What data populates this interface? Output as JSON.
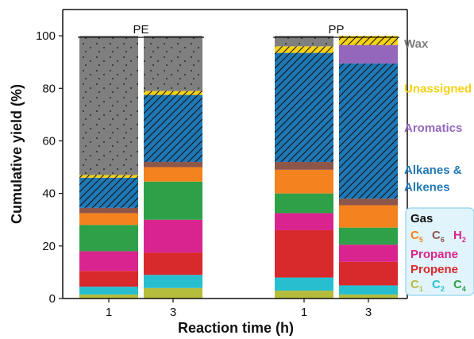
{
  "chart_data": {
    "type": "bar",
    "stacked": true,
    "xlabel": "Reaction time (h)",
    "ylabel": "Cumulative yield (%)",
    "ylim": [
      0,
      110
    ],
    "yticks": [
      0,
      20,
      40,
      60,
      80,
      100
    ],
    "groups": [
      {
        "label": "PE",
        "bars": [
          {
            "time_label": "1",
            "segments": [
              {
                "component": "C1",
                "value": 1.5
              },
              {
                "component": "C2",
                "value": 3.0
              },
              {
                "component": "Propene",
                "value": 6.0
              },
              {
                "component": "Propane",
                "value": 7.5
              },
              {
                "component": "C4",
                "value": 10.0
              },
              {
                "component": "C5",
                "value": 4.5
              },
              {
                "component": "C6",
                "value": 2.0
              },
              {
                "component": "Alkanes & Alkenes",
                "value": 11.5
              },
              {
                "component": "Unassigned",
                "value": 1.0
              },
              {
                "component": "Wax",
                "value": 53.0
              }
            ]
          },
          {
            "time_label": "3",
            "segments": [
              {
                "component": "C1",
                "value": 4.0
              },
              {
                "component": "C2",
                "value": 5.0
              },
              {
                "component": "Propene",
                "value": 8.5
              },
              {
                "component": "Propane",
                "value": 12.5
              },
              {
                "component": "C4",
                "value": 14.5
              },
              {
                "component": "C5",
                "value": 5.5
              },
              {
                "component": "C6",
                "value": 2.0
              },
              {
                "component": "Alkanes & Alkenes",
                "value": 25.5
              },
              {
                "component": "Unassigned",
                "value": 1.5
              },
              {
                "component": "Wax",
                "value": 21.0
              }
            ]
          }
        ]
      },
      {
        "label": "PP",
        "bars": [
          {
            "time_label": "1",
            "segments": [
              {
                "component": "C1",
                "value": 3.0
              },
              {
                "component": "C2",
                "value": 5.0
              },
              {
                "component": "Propene",
                "value": 18.0
              },
              {
                "component": "Propane",
                "value": 6.5
              },
              {
                "component": "C4",
                "value": 7.5
              },
              {
                "component": "C5",
                "value": 9.0
              },
              {
                "component": "C6",
                "value": 3.0
              },
              {
                "component": "Alkanes & Alkenes",
                "value": 41.5
              },
              {
                "component": "Unassigned",
                "value": 2.5
              },
              {
                "component": "Wax",
                "value": 4.0
              }
            ]
          },
          {
            "time_label": "3",
            "segments": [
              {
                "component": "C1",
                "value": 1.5
              },
              {
                "component": "C2",
                "value": 3.5
              },
              {
                "component": "Propene",
                "value": 9.0
              },
              {
                "component": "Propane",
                "value": 6.5
              },
              {
                "component": "C4",
                "value": 6.5
              },
              {
                "component": "C5",
                "value": 8.5
              },
              {
                "component": "C6",
                "value": 2.5
              },
              {
                "component": "Alkanes & Alkenes",
                "value": 51.5
              },
              {
                "component": "Aromatics",
                "value": 7.0
              },
              {
                "component": "Unassigned",
                "value": 3.5
              }
            ]
          }
        ]
      }
    ],
    "components": [
      {
        "name": "C1",
        "color": "#b5bd3c",
        "hatch": "none"
      },
      {
        "name": "C2",
        "color": "#27bfd0",
        "hatch": "none"
      },
      {
        "name": "Propene",
        "color": "#d8292c",
        "hatch": "none"
      },
      {
        "name": "Propane",
        "color": "#d9248f",
        "hatch": "none"
      },
      {
        "name": "C4",
        "color": "#2ea148",
        "hatch": "none"
      },
      {
        "name": "C5",
        "color": "#f4821f",
        "hatch": "none"
      },
      {
        "name": "C6",
        "color": "#8c564b",
        "hatch": "none"
      },
      {
        "name": "Alkanes & Alkenes",
        "color": "#1f77b4",
        "hatch": "diagonal"
      },
      {
        "name": "Aromatics",
        "color": "#9467bd",
        "hatch": "none"
      },
      {
        "name": "Unassigned",
        "color": "#f5d113",
        "hatch": "diagonal"
      },
      {
        "name": "Wax",
        "color": "#7f7f7f",
        "hatch": "dots"
      }
    ],
    "right_labels": [
      {
        "text": "Wax",
        "color": "#7f7f7f",
        "y_value": 97
      },
      {
        "text": "Unassigned",
        "color": "#f5d113",
        "y_value": 80
      },
      {
        "text": "Aromatics",
        "color": "#9467bd",
        "y_value": 65
      },
      {
        "text": "Alkanes &",
        "color": "#1f77b4",
        "y_value": 49
      },
      {
        "text": "Alkenes",
        "color": "#1f77b4",
        "y_value": 42.5
      }
    ],
    "legend_box": {
      "title": "Gas",
      "title_color": "#111111",
      "row1": [
        {
          "text": "C",
          "sub": "5",
          "color": "#f4821f"
        },
        {
          "text": "C",
          "sub": "6",
          "color": "#8c564b"
        },
        {
          "text": "H",
          "sub": "2",
          "color": "#d9248f"
        }
      ],
      "propane": {
        "text": "Propane",
        "color": "#d9248f"
      },
      "propene": {
        "text": "Propene",
        "color": "#d8292c"
      },
      "row4": [
        {
          "text": "C",
          "sub": "1",
          "color": "#b5bd3c"
        },
        {
          "text": "C",
          "sub": "2",
          "color": "#27bfd0"
        },
        {
          "text": "C",
          "sub": "4",
          "color": "#2ea148"
        }
      ],
      "background": "#e2f4fb",
      "border": "#8fd3ec"
    }
  }
}
